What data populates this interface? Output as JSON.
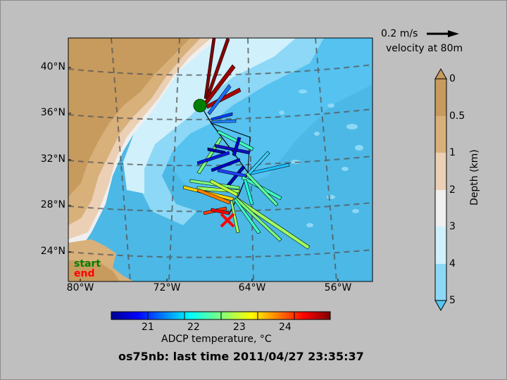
{
  "map": {
    "y_labels": [
      "40°N",
      "36°N",
      "32°N",
      "28°N",
      "24°N"
    ],
    "x_labels": [
      "80°W",
      "72°W",
      "64°W",
      "56°W"
    ],
    "legend": {
      "start": "start",
      "end": "end",
      "start_color": "#008000",
      "end_color": "#ff0000"
    }
  },
  "scale_arrow": {
    "speed": "0.2 m/s",
    "caption": "velocity at 80m"
  },
  "depth_colorbar": {
    "label": "Depth (km)",
    "ticks": [
      "0",
      "0.5",
      "1",
      "2",
      "3",
      "4",
      "5"
    ],
    "colors": [
      "#c79b5e",
      "#d8b07a",
      "#ebd0b5",
      "#efefef",
      "#d0f0fb",
      "#8cd8f6",
      "#55c7f2"
    ]
  },
  "temp_colorbar": {
    "label": "ADCP temperature, °C",
    "ticks": [
      "21",
      "22",
      "23",
      "24"
    ]
  },
  "title": "os75nb: last time 2011/04/27 23:35:37"
}
